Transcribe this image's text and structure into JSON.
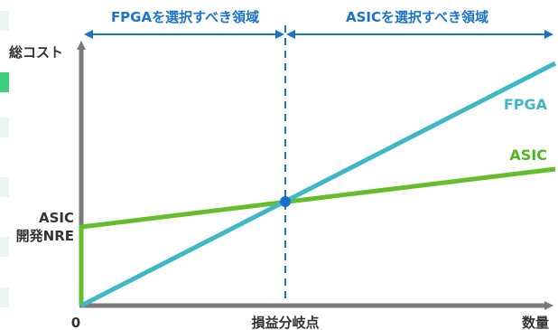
{
  "diagram": {
    "top_labels": {
      "fpga_region": "FPGAを選択すべき領域",
      "asic_region": "ASICを選択すべき領域"
    },
    "y_axis_label": "総コスト",
    "x_axis_label": "数量",
    "origin_label": "0",
    "nre_label_line1": "ASIC",
    "nre_label_line2": "開発NRE",
    "breakeven_label": "損益分岐点",
    "series": [
      {
        "name": "FPGA",
        "color": "#3fb7c6"
      },
      {
        "name": "ASIC",
        "color": "#63be2a"
      }
    ],
    "colors": {
      "axis": "#7a7a7a",
      "region_arrow": "#1a73c9",
      "breakeven_point": "#1a6fd0",
      "fpga_label": "#3fb7c6",
      "asic_label": "#4fb51c"
    }
  }
}
